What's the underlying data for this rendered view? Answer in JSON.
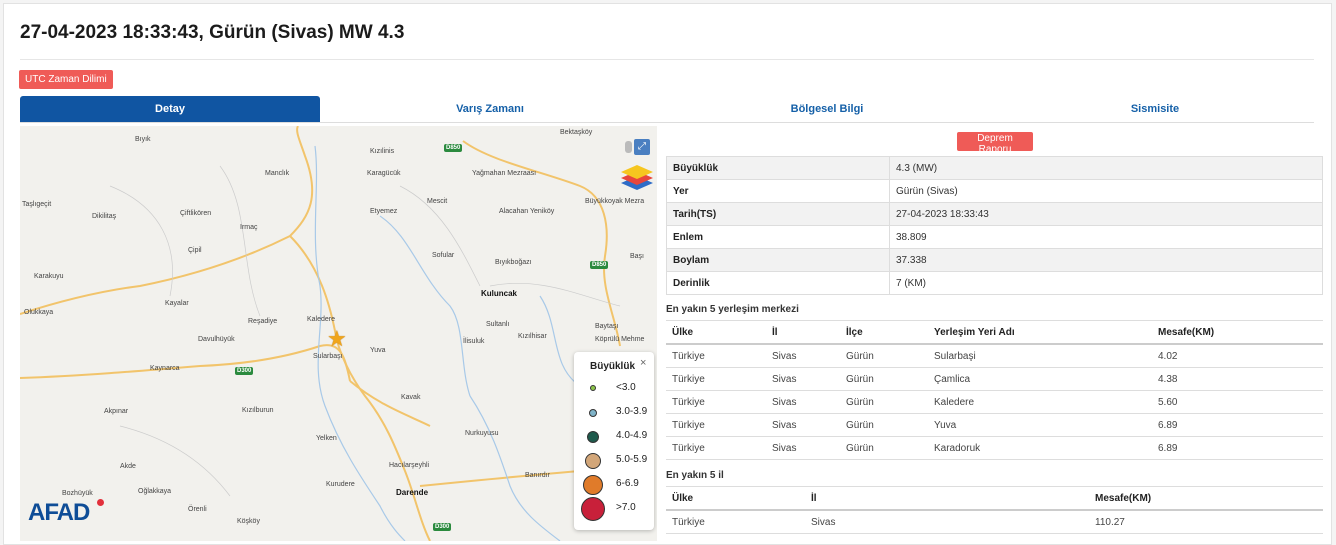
{
  "title": "27-04-2023 18:33:43, Gürün (Sivas) MW 4.3",
  "utc_button": "UTC Zaman Dilimi",
  "tabs": [
    {
      "label": "Detay"
    },
    {
      "label": "Varış Zamanı"
    },
    {
      "label": "Bölgesel Bilgi"
    },
    {
      "label": "Sismisite"
    }
  ],
  "report_button": "Deprem Raporu",
  "info": [
    {
      "key": "Büyüklük",
      "value": "4.3 (MW)"
    },
    {
      "key": "Yer",
      "value": "Gürün (Sivas)"
    },
    {
      "key": "Tarih(TS)",
      "value": "27-04-2023 18:33:43"
    },
    {
      "key": "Enlem",
      "value": "38.809"
    },
    {
      "key": "Boylam",
      "value": "37.338"
    },
    {
      "key": "Derinlik",
      "value": "7 (KM)"
    }
  ],
  "settlements": {
    "title": "En yakın 5 yerleşim merkezi",
    "headers": [
      "Ülke",
      "İl",
      "İlçe",
      "Yerleşim Yeri Adı",
      "Mesafe(KM)"
    ],
    "rows": [
      [
        "Türkiye",
        "Sivas",
        "Gürün",
        "Sularbaşi",
        "4.02"
      ],
      [
        "Türkiye",
        "Sivas",
        "Gürün",
        "Çamlica",
        "4.38"
      ],
      [
        "Türkiye",
        "Sivas",
        "Gürün",
        "Kaledere",
        "5.60"
      ],
      [
        "Türkiye",
        "Sivas",
        "Gürün",
        "Yuva",
        "6.89"
      ],
      [
        "Türkiye",
        "Sivas",
        "Gürün",
        "Karadoruk",
        "6.89"
      ]
    ]
  },
  "provinces": {
    "title": "En yakın 5 il",
    "headers": [
      "Ülke",
      "İl",
      "Mesafe(KM)"
    ],
    "rows": [
      [
        "Türkiye",
        "Sivas",
        "110.27"
      ]
    ]
  },
  "legend": {
    "title": "Büyüklük",
    "close": "×",
    "items": [
      {
        "label": "<3.0",
        "color": "#8bc34a"
      },
      {
        "label": "3.0-3.9",
        "color": "#7fb3c8"
      },
      {
        "label": "4.0-4.9",
        "color": "#1e5a4c"
      },
      {
        "label": "5.0-5.9",
        "color": "#d2a679"
      },
      {
        "label": "6-6.9",
        "color": "#e07b2a"
      },
      {
        "label": ">7.0",
        "color": "#c8203a"
      }
    ]
  },
  "map": {
    "logo": "AFAD",
    "place_labels": [
      "Bektaşköy",
      "Kızılinis",
      "Manclık",
      "Karagücük",
      "Bıyık",
      "Taşlıgeçit",
      "Dikilitaş",
      "Çiftlikören",
      "Irmaç",
      "Etyemez",
      "Mescit",
      "Alacahan Yeniköy",
      "Büyükkoyak Mezra",
      "Sofular",
      "Bıyıkboğazı",
      "Karakuyu",
      "Kayalar",
      "Reşadiye",
      "Kaledere",
      "Olukkaya",
      "Davulhüyük",
      "Kuluncak",
      "Sultanlı",
      "Kızılhisar",
      "Baytaşı",
      "Köprülü Mehme",
      "Yuva",
      "Sularbaşı",
      "İlisuluk",
      "Kaynarca",
      "Kızılburun",
      "Akpınar",
      "Kavak",
      "Yelken",
      "Nurkuyusu",
      "Hacılarşeyhli",
      "Banırdır",
      "Akde",
      "Bozhüyük",
      "Oğlakkaya",
      "Kurudere",
      "Darende",
      "Örenli",
      "Köşköy",
      "Başı",
      "Çipil",
      "Yağmahan Mezraası"
    ],
    "road_labels": [
      "D850",
      "D850",
      "D300",
      "D300"
    ],
    "fullscreen_icon": "⤢"
  }
}
